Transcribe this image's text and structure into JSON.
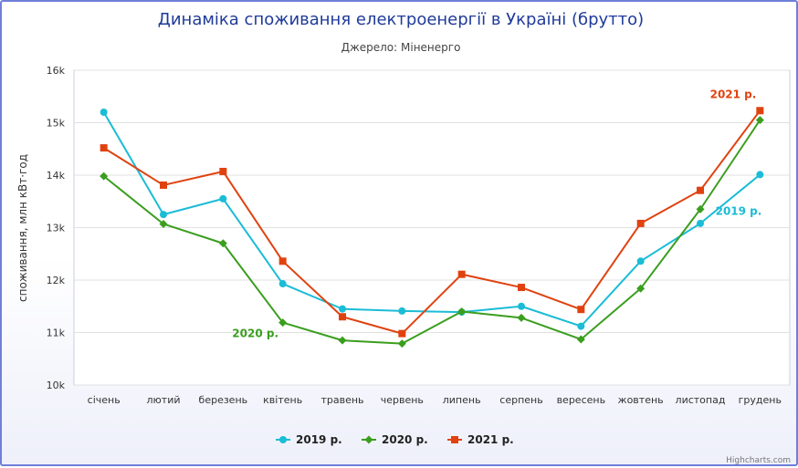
{
  "chart_data": {
    "type": "line",
    "title": "Динаміка споживання електроенергії в Україні (брутто)",
    "subtitle": "Джерело: Міненерго",
    "xlabel": "",
    "ylabel": "споживання, млн кВт·год",
    "categories": [
      "січень",
      "лютий",
      "березень",
      "квітень",
      "травень",
      "червень",
      "липень",
      "серпень",
      "вересень",
      "жовтень",
      "листопад",
      "грудень"
    ],
    "ylim": [
      10000,
      16000
    ],
    "yticks": [
      10000,
      11000,
      12000,
      13000,
      14000,
      15000,
      16000
    ],
    "ytick_labels": [
      "10k",
      "11k",
      "12k",
      "13k",
      "14k",
      "15k",
      "16k"
    ],
    "grid": true,
    "legend_position": "bottom",
    "series": [
      {
        "name": "2019 р.",
        "color": "#1bbcd6",
        "marker": "circle",
        "values": [
          15200,
          13250,
          13550,
          11930,
          11450,
          11410,
          11390,
          11500,
          11120,
          12360,
          13080,
          14010
        ]
      },
      {
        "name": "2020 р.",
        "color": "#3a9e1e",
        "marker": "diamond",
        "values": [
          13980,
          13070,
          12700,
          11190,
          10850,
          10790,
          11400,
          11280,
          10870,
          11840,
          13350,
          15050
        ]
      },
      {
        "name": "2021 р.",
        "color": "#e0420f",
        "marker": "square",
        "values": [
          14520,
          13810,
          14070,
          12360,
          11300,
          10980,
          12110,
          11860,
          11440,
          13080,
          13710,
          15230
        ]
      }
    ],
    "annotations": [
      {
        "text": "2021 р.",
        "series": 2
      },
      {
        "text": "2019 р.",
        "series": 0
      },
      {
        "text": "2020 р.",
        "series": 1
      }
    ],
    "credits": "Highcharts.com"
  }
}
